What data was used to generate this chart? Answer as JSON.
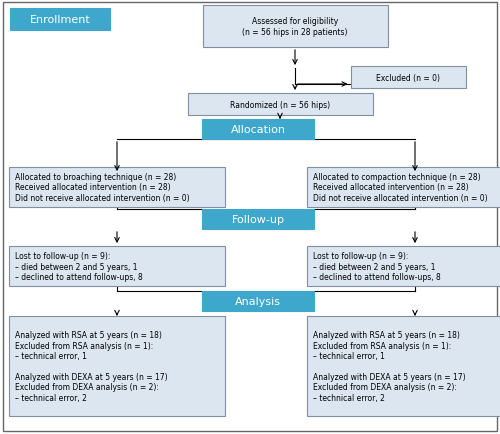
{
  "bg_color": "#ffffff",
  "box_fill": "#dce6f1",
  "box_edge": "#8090a0",
  "blue_fill": "#3ea8cc",
  "blue_edge": "#3ea8cc",
  "blue_text": "#ffffff",
  "enrollment_label": "Enrollment",
  "allocation_label": "Allocation",
  "followup_label": "Follow-up",
  "analysis_label": "Analysis",
  "box1_text": "Assessed for eligibility\n(n = 56 hips in 28 patients)",
  "box2_text": "Excluded (n = 0)",
  "box3_text": "Randomized (n = 56 hips)",
  "box4L_text": "Allocated to broaching technique (n = 28)\nReceived allocated intervention (n = 28)\nDid not receive allocated intervention (n = 0)",
  "box4R_text": "Allocated to compaction technique (n = 28)\nReceived allocated intervention (n = 28)\nDid not receive allocated intervention (n = 0)",
  "box5L_text": "Lost to follow-up (n = 9):\n– died between 2 and 5 years, 1\n– declined to attend follow-ups, 8",
  "box5R_text": "Lost to follow-up (n = 9):\n– died between 2 and 5 years, 1\n– declined to attend follow-ups, 8",
  "box6L_text": "Analyzed with RSA at 5 years (n = 18)\nExcluded from RSA analysis (n = 1):\n– technical error, 1\n\nAnalyzed with DEXA at 5 years (n = 17)\nExcluded from DEXA analysis (n = 2):\n– technical error, 2",
  "box6R_text": "Analyzed with RSA at 5 years (n = 18)\nExcluded from RSA analysis (n = 1):\n– technical error, 1\n\nAnalyzed with DEXA at 5 years (n = 17)\nExcluded from DEXA analysis (n = 2):\n– technical error, 2",
  "font_size_box": 5.5,
  "font_size_label": 8.0
}
